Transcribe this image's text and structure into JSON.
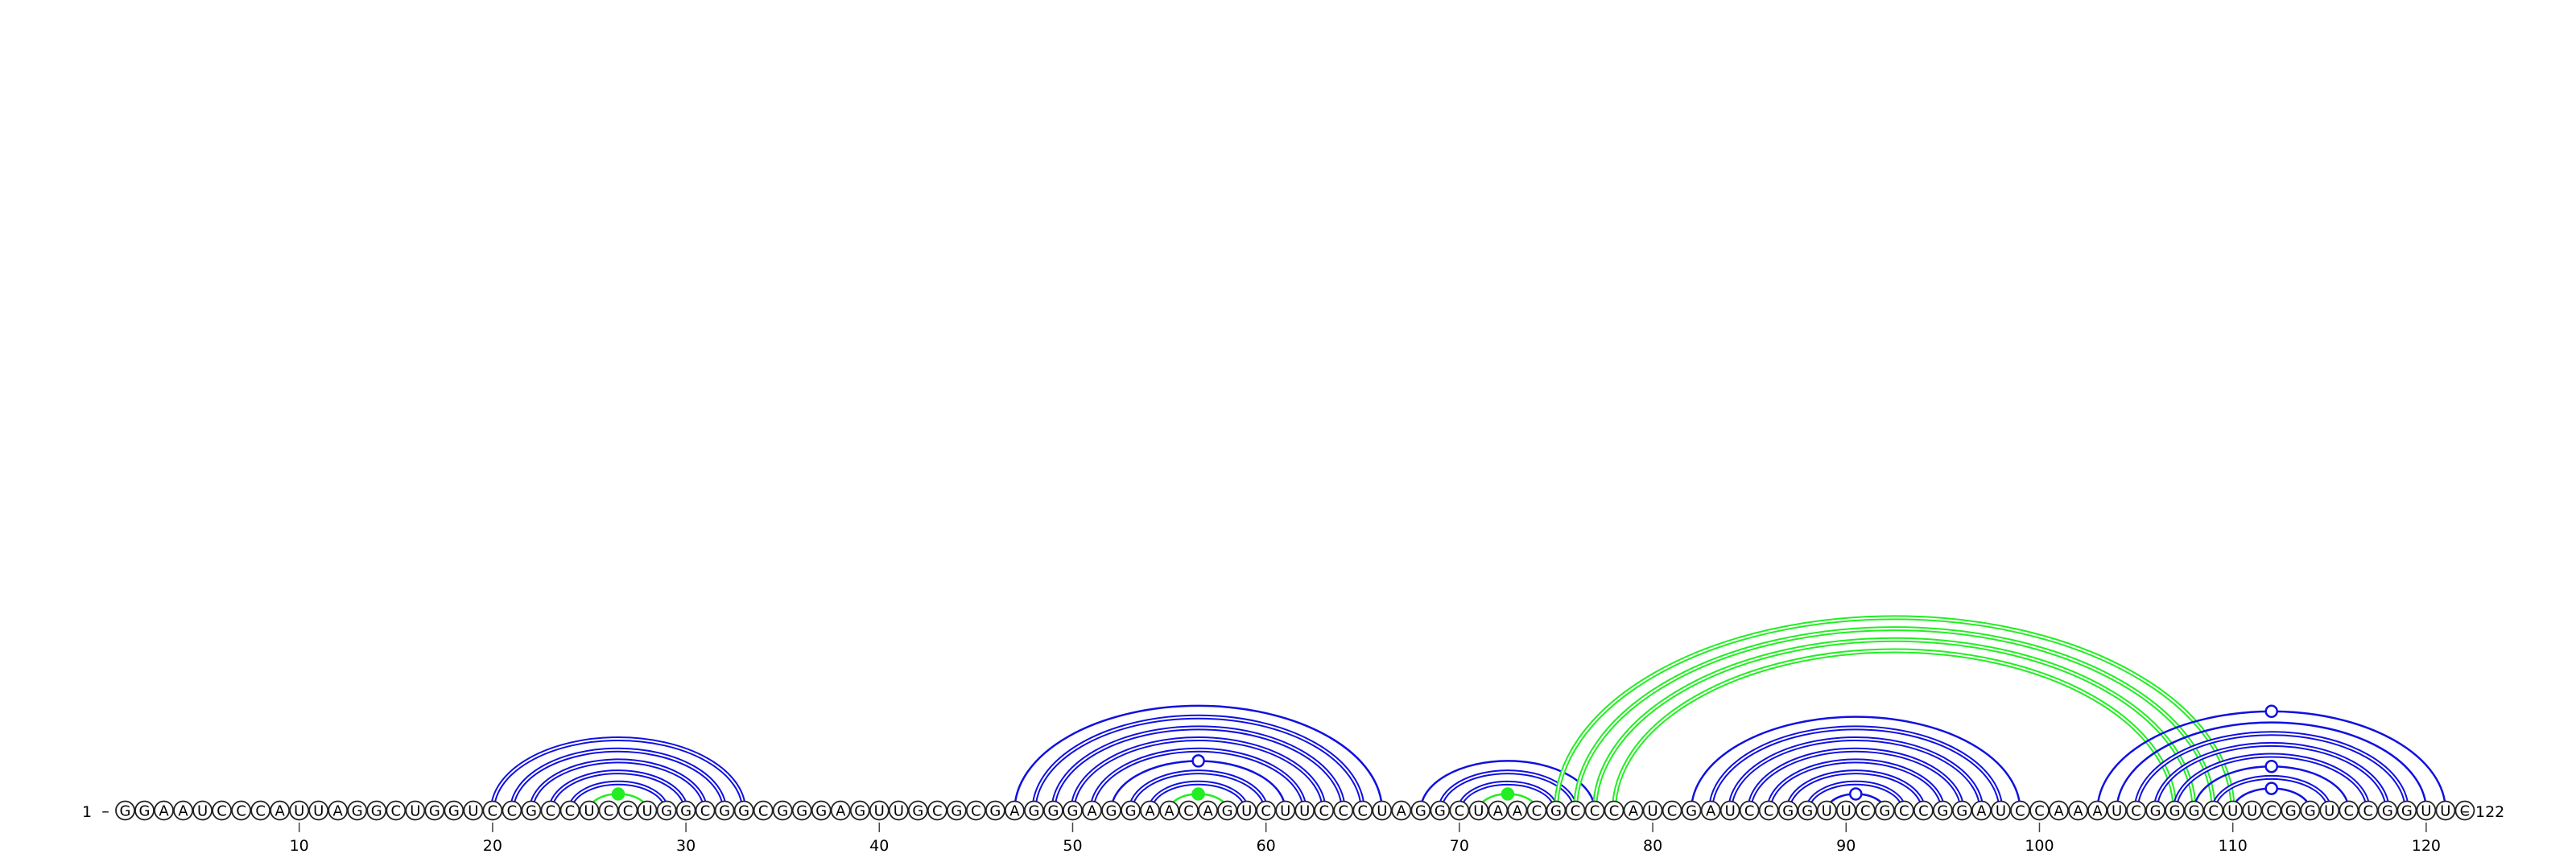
{
  "sequence": "GGAAUCCCAUUAGGCUGGUCCGCCUCCUGGCGGCGGGAGUUGCGCGAGGGAGGAACAGUCUUCCCUAGGCUAACGCCCAUCGAUCCGGUUCGCCGGAUCCAAAUCGGGCUUCGGUCCGGUUC",
  "start_label": "1",
  "end_label": "122",
  "tick_labels": [
    "10",
    "20",
    "30",
    "40",
    "50",
    "60",
    "70",
    "80",
    "90",
    "100",
    "110",
    "120"
  ],
  "colors": {
    "arc": "#1010e0",
    "highlight": "#22ee22",
    "node_stroke": "#222222",
    "text": "#000000"
  },
  "arcs": [
    {
      "i": 20,
      "j": 33,
      "color": "blue",
      "double": true
    },
    {
      "i": 21,
      "j": 32,
      "color": "blue",
      "double": true
    },
    {
      "i": 22,
      "j": 31,
      "color": "blue",
      "double": true
    },
    {
      "i": 23,
      "j": 30,
      "color": "blue",
      "double": true
    },
    {
      "i": 24,
      "j": 29,
      "color": "blue",
      "double": true
    },
    {
      "i": 25,
      "j": 28,
      "color": "green",
      "double": false,
      "dot": "filled"
    },
    {
      "i": 47,
      "j": 66,
      "color": "blue",
      "double": false
    },
    {
      "i": 48,
      "j": 65,
      "color": "blue",
      "double": true
    },
    {
      "i": 49,
      "j": 64,
      "color": "blue",
      "double": true
    },
    {
      "i": 50,
      "j": 63,
      "color": "blue",
      "double": true
    },
    {
      "i": 51,
      "j": 62,
      "color": "blue",
      "double": true
    },
    {
      "i": 52,
      "j": 61,
      "color": "blue",
      "double": false,
      "dot": "open"
    },
    {
      "i": 53,
      "j": 60,
      "color": "blue",
      "double": true
    },
    {
      "i": 54,
      "j": 59,
      "color": "blue",
      "double": true
    },
    {
      "i": 55,
      "j": 58,
      "color": "green",
      "double": false,
      "dot": "filled"
    },
    {
      "i": 68,
      "j": 77,
      "color": "blue",
      "double": false
    },
    {
      "i": 69,
      "j": 76,
      "color": "blue",
      "double": true
    },
    {
      "i": 70,
      "j": 75,
      "color": "blue",
      "double": true
    },
    {
      "i": 71,
      "j": 74,
      "color": "green",
      "double": false,
      "dot": "filled"
    },
    {
      "i": 75,
      "j": 110,
      "color": "green",
      "double": true
    },
    {
      "i": 76,
      "j": 109,
      "color": "green",
      "double": true
    },
    {
      "i": 77,
      "j": 108,
      "color": "green",
      "double": true
    },
    {
      "i": 78,
      "j": 107,
      "color": "green",
      "double": true
    },
    {
      "i": 82,
      "j": 99,
      "color": "blue",
      "double": false
    },
    {
      "i": 83,
      "j": 98,
      "color": "blue",
      "double": true
    },
    {
      "i": 84,
      "j": 97,
      "color": "blue",
      "double": true
    },
    {
      "i": 85,
      "j": 96,
      "color": "blue",
      "double": true
    },
    {
      "i": 86,
      "j": 95,
      "color": "blue",
      "double": true
    },
    {
      "i": 87,
      "j": 94,
      "color": "blue",
      "double": true
    },
    {
      "i": 88,
      "j": 93,
      "color": "blue",
      "double": true
    },
    {
      "i": 89,
      "j": 92,
      "color": "blue",
      "double": false,
      "dot": "open"
    },
    {
      "i": 103,
      "j": 121,
      "color": "blue",
      "double": false,
      "dot": "open"
    },
    {
      "i": 104,
      "j": 120,
      "color": "blue",
      "double": false
    },
    {
      "i": 105,
      "j": 119,
      "color": "blue",
      "double": true
    },
    {
      "i": 106,
      "j": 118,
      "color": "blue",
      "double": true
    },
    {
      "i": 107,
      "j": 117,
      "color": "blue",
      "double": true
    },
    {
      "i": 108,
      "j": 116,
      "color": "blue",
      "double": false,
      "dot": "open"
    },
    {
      "i": 109,
      "j": 115,
      "color": "blue",
      "double": true
    },
    {
      "i": 110,
      "j": 114,
      "color": "blue",
      "double": false,
      "dot": "open"
    }
  ]
}
